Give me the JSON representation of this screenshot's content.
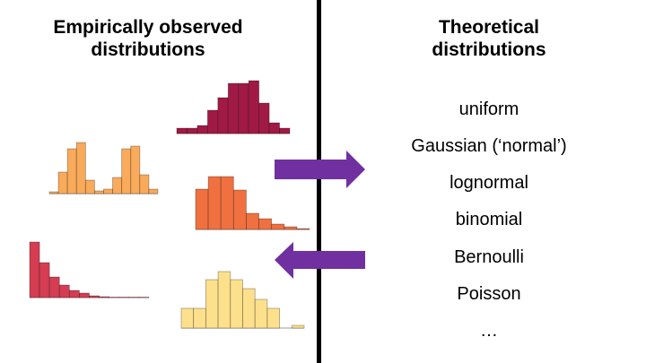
{
  "left_title_line1": "Empirically observed",
  "left_title_line2": "distributions",
  "right_title_line1": "Theoretical",
  "right_title_line2": "distributions",
  "theoretical": [
    "uniform",
    "Gaussian (‘normal’)",
    "lognormal",
    "binomial",
    "Bernoulli",
    "Poisson",
    "…"
  ],
  "colors": {
    "arrow": "#7030a0",
    "divider": "#000000"
  },
  "histograms": [
    {
      "name": "gaussian-histogram",
      "color": "#a01a45",
      "relative_counts": [
        6,
        6,
        9,
        26,
        40,
        56,
        56,
        59,
        34,
        12,
        6
      ]
    },
    {
      "name": "bimodal-histogram",
      "color": "#f9aa5a",
      "relative_counts": [
        2,
        24,
        50,
        57,
        15,
        3,
        5,
        18,
        50,
        53,
        21,
        5
      ]
    },
    {
      "name": "lognormal-histogram",
      "color": "#f07040",
      "relative_counts": [
        45,
        59,
        59,
        44,
        18,
        12,
        6,
        3,
        1
      ]
    },
    {
      "name": "exponential-histogram",
      "color": "#d43d52",
      "relative_counts": [
        62,
        39,
        23,
        14,
        8,
        5,
        2,
        1,
        0.5,
        0.5,
        0.5,
        0.5
      ]
    },
    {
      "name": "skewed-histogram",
      "color": "#fde08b",
      "relative_counts": [
        22,
        22,
        54,
        63,
        54,
        44,
        32,
        22,
        0,
        3
      ]
    }
  ]
}
